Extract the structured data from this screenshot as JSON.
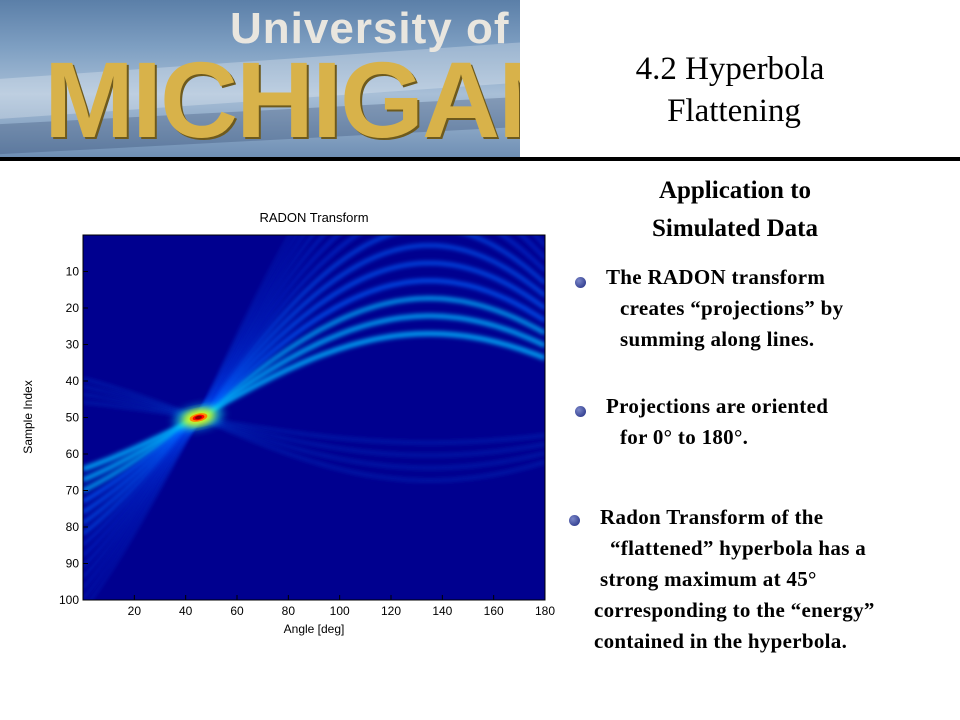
{
  "logo": {
    "line1": "University of",
    "line2": "MICHIGAN"
  },
  "title": {
    "line1": "4.2 Hyperbola",
    "line2": "Flattening"
  },
  "subheading": {
    "line1": "Application to",
    "line2": "Simulated Data"
  },
  "bullets": [
    {
      "lines": [
        "The RADON transform",
        "creates “projections” by",
        "summing along lines."
      ]
    },
    {
      "lines": [
        "Projections are oriented",
        "for 0° to 180°."
      ]
    },
    {
      "lines": [
        "Radon Transform of the",
        "“flattened” hyperbola has a",
        "strong maximum at 45°",
        "corresponding to the “energy”",
        "contained in the hyperbola."
      ]
    }
  ],
  "colors": {
    "plot_background": "#00008f",
    "peak": "#8b0000",
    "rule": "#000000"
  },
  "chart_data": {
    "type": "heatmap",
    "title": "RADON Transform",
    "xlabel": "Angle [deg]",
    "ylabel": "Sample Index",
    "xlim": [
      0,
      180
    ],
    "ylim": [
      100,
      0
    ],
    "x_ticks": [
      20,
      40,
      60,
      80,
      100,
      120,
      140,
      160,
      180
    ],
    "y_ticks": [
      10,
      20,
      30,
      40,
      50,
      60,
      70,
      80,
      90,
      100
    ],
    "colormap": "jet",
    "peak": {
      "angle": 45,
      "sample": 50
    }
  }
}
